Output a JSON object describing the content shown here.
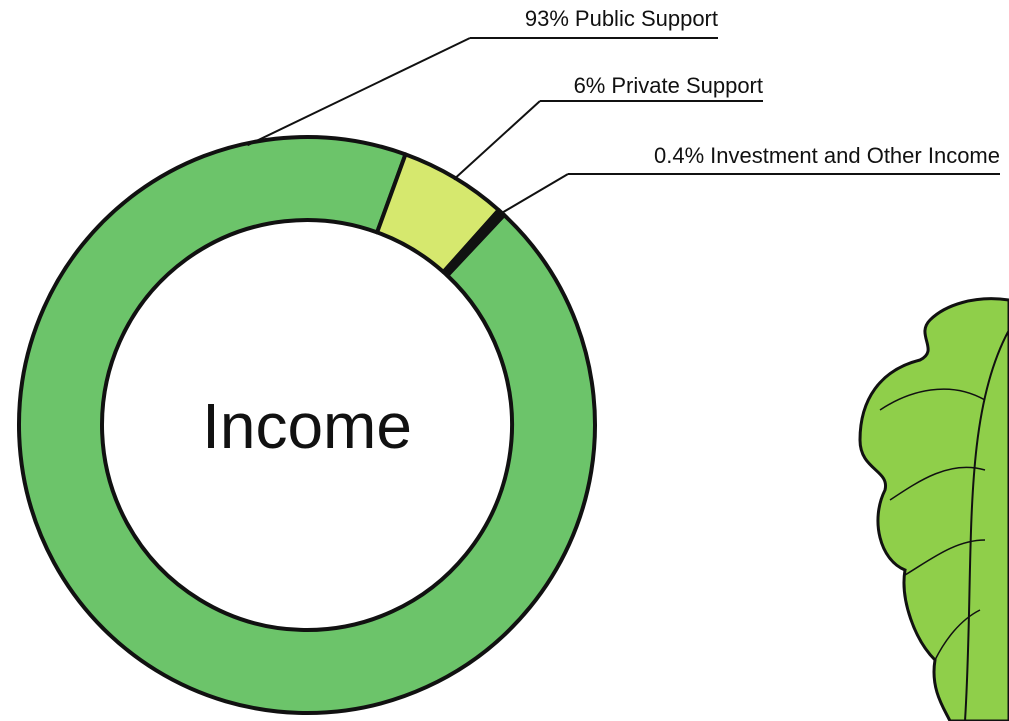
{
  "chart_data": {
    "type": "pie",
    "donut": true,
    "title": "Income",
    "categories": [
      "Public Support",
      "Private Support",
      "Investment and Other Income"
    ],
    "values": [
      93,
      6,
      0.4
    ],
    "value_labels": [
      "93%",
      "6%",
      "0.4%"
    ],
    "colors": [
      "#6cc46a",
      "#d6e86e",
      "#111111"
    ]
  }
}
